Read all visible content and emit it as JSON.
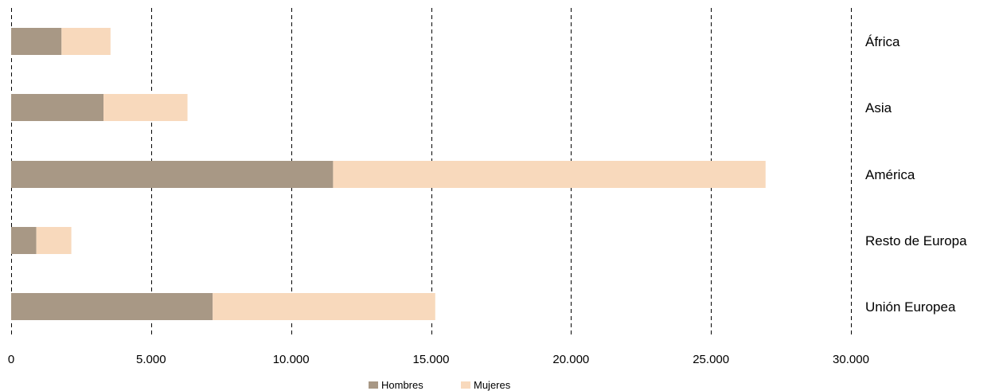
{
  "chart_data": {
    "type": "bar",
    "orientation": "horizontal",
    "stacked": true,
    "categories": [
      "África",
      "Asia",
      "América",
      "Resto de Europa",
      "Unión Europea"
    ],
    "series": [
      {
        "name": "Hombres",
        "color": "#a89885",
        "values": [
          1800,
          3300,
          11500,
          900,
          7200
        ]
      },
      {
        "name": "Mujeres",
        "color": "#f8d9bc",
        "values": [
          1750,
          3000,
          15450,
          1250,
          7950
        ]
      }
    ],
    "xlim": [
      0,
      30000
    ],
    "xticks": [
      0,
      5000,
      10000,
      15000,
      20000,
      25000,
      30000
    ],
    "xtick_labels": [
      "0",
      "5.000",
      "10.000",
      "15.000",
      "20.000",
      "25.000",
      "30.000"
    ],
    "grid": "vertical dashed",
    "legend_position": "bottom"
  }
}
